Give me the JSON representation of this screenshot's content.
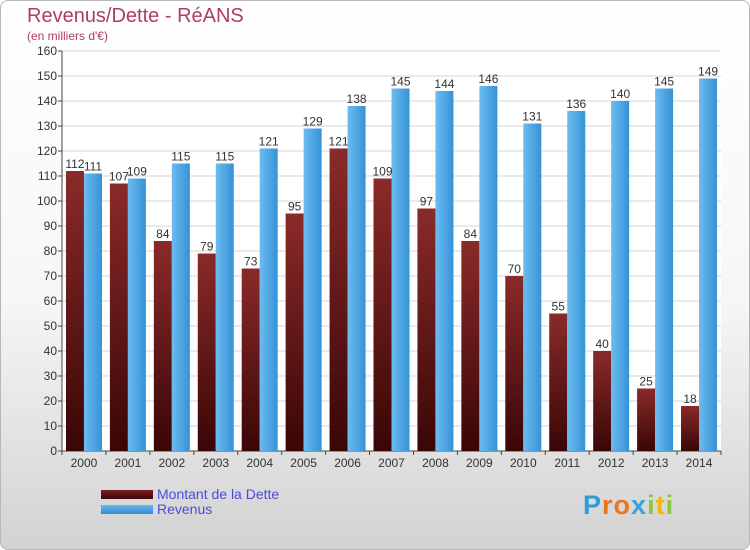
{
  "chart_data": {
    "type": "bar",
    "title": "Revenus/Dette - RéANS",
    "subtitle": "(en milliers d'€)",
    "categories": [
      "2000",
      "2001",
      "2002",
      "2003",
      "2004",
      "2005",
      "2006",
      "2007",
      "2008",
      "2009",
      "2010",
      "2011",
      "2012",
      "2013",
      "2014"
    ],
    "series": [
      {
        "name": "Montant de la Dette",
        "color": "#7a1d1d",
        "values": [
          112,
          107,
          84,
          79,
          73,
          95,
          121,
          109,
          97,
          84,
          70,
          55,
          40,
          25,
          18
        ]
      },
      {
        "name": "Revenus",
        "color": "#4aa3e6",
        "values": [
          111,
          109,
          115,
          115,
          121,
          129,
          138,
          145,
          144,
          146,
          131,
          136,
          140,
          145,
          149
        ]
      }
    ],
    "ylim": [
      0,
      160
    ],
    "ytick_step": 10,
    "grid": true,
    "legend_position": "bottom-left"
  },
  "logo": {
    "letters": [
      "P",
      "r",
      "o",
      "x",
      "i",
      "t",
      "i"
    ],
    "colors": [
      "#2e9bd8",
      "#e87722",
      "#e87722",
      "#3aa0d8",
      "#8cc63f",
      "#f4b400",
      "#8cc63f"
    ]
  }
}
